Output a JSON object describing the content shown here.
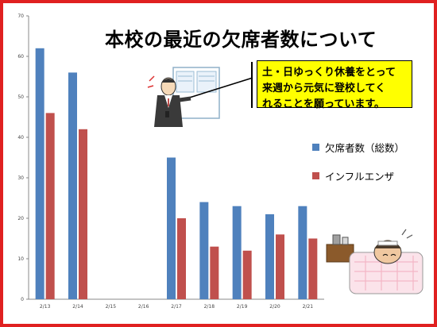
{
  "chart_data": {
    "type": "bar",
    "title": "本校の最近の欠席者数について",
    "categories": [
      "2/13",
      "2/14",
      "2/15",
      "2/16",
      "2/17",
      "2/18",
      "2/19",
      "2/20",
      "2/21"
    ],
    "y_ticks": [
      "0",
      "10",
      "20",
      "30",
      "40",
      "50",
      "60",
      "70"
    ],
    "ylim": [
      0,
      70
    ],
    "grid": false,
    "legend_position": "right",
    "series": [
      {
        "name": "欠席者数（総数）",
        "color": "#4f81bd",
        "values": [
          62,
          56,
          null,
          null,
          35,
          24,
          23,
          21,
          23
        ]
      },
      {
        "name": "インフルエンザ",
        "color": "#c0504d",
        "values": [
          46,
          42,
          null,
          null,
          20,
          13,
          12,
          16,
          15
        ]
      }
    ]
  },
  "callout": {
    "lines": [
      "土・日ゆっくり休養をとって",
      "来週から元気に登校してく",
      "れることを願っています。"
    ]
  },
  "colors": {
    "frame": "#e02020",
    "callout_bg": "#ffff00"
  },
  "illustrations": [
    "teacher-pointing-at-board",
    "sick-child-in-bed"
  ]
}
